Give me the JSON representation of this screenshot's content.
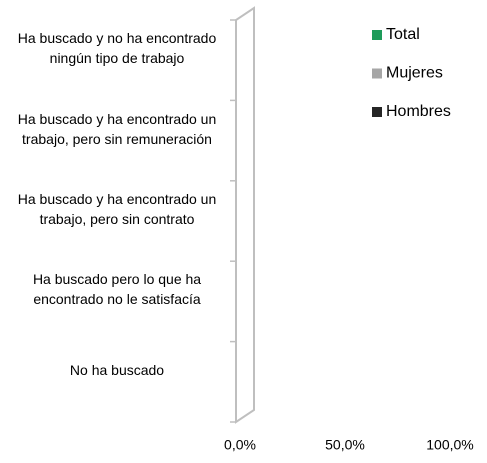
{
  "chart_data": {
    "type": "barh",
    "categories": [
      "Ha buscado y no ha encontrado ningún tipo de trabajo",
      "Ha buscado y ha encontrado un trabajo, pero sin remuneración",
      "Ha buscado y ha encontrado un trabajo, pero sin contrato",
      "Ha buscado pero lo que ha encontrado no le satisfacía",
      "No ha buscado"
    ],
    "series": [
      {
        "name": "Total",
        "color": "#1e9b5a",
        "values": [
          0,
          0,
          0,
          0,
          0
        ]
      },
      {
        "name": "Mujeres",
        "color": "#a6a6a6",
        "values": [
          0,
          0,
          0,
          0,
          0
        ]
      },
      {
        "name": "Hombres",
        "color": "#262626",
        "values": [
          0,
          0,
          0,
          0,
          0
        ]
      }
    ],
    "xlim": [
      0,
      100
    ],
    "xticks": [
      {
        "value": 0,
        "label": "0,0%"
      },
      {
        "value": 50,
        "label": "50,0%"
      },
      {
        "value": 100,
        "label": "100,0%"
      }
    ],
    "legend": "right"
  }
}
